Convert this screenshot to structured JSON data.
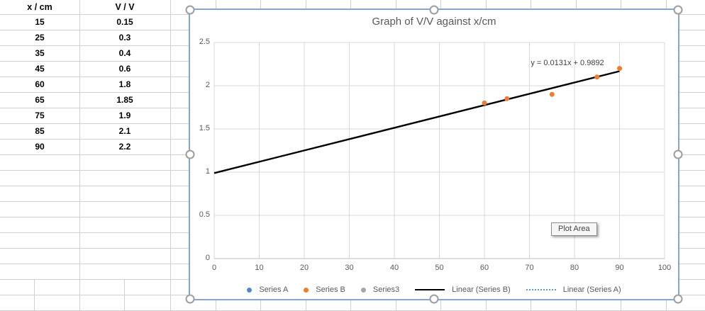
{
  "sheet": {
    "table": {
      "headers": [
        "x / cm",
        "V / V"
      ],
      "rows": [
        [
          "15",
          "0.15"
        ],
        [
          "25",
          "0.3"
        ],
        [
          "35",
          "0.4"
        ],
        [
          "45",
          "0.6"
        ],
        [
          "60",
          "1.8"
        ],
        [
          "65",
          "1.85"
        ],
        [
          "75",
          "1.9"
        ],
        [
          "85",
          "2.1"
        ],
        [
          "90",
          "2.2"
        ]
      ]
    }
  },
  "chart_data": {
    "type": "scatter",
    "title": "Graph of V/V against x/cm",
    "xlabel": "",
    "ylabel": "",
    "xlim": [
      0,
      100
    ],
    "ylim": [
      0,
      2.5
    ],
    "xticks": [
      0,
      10,
      20,
      30,
      40,
      50,
      60,
      70,
      80,
      90,
      100
    ],
    "yticks": [
      0,
      0.5,
      1,
      1.5,
      2,
      2.5
    ],
    "grid": true,
    "legend_position": "bottom",
    "series": [
      {
        "name": "Series A",
        "color": "#4e8bc8",
        "marker": "dot",
        "points": []
      },
      {
        "name": "Series B",
        "color": "#ed7d31",
        "marker": "dot",
        "points": [
          [
            60,
            1.8
          ],
          [
            65,
            1.85
          ],
          [
            75,
            1.9
          ],
          [
            85,
            2.1
          ],
          [
            90,
            2.2
          ]
        ]
      },
      {
        "name": "Series3",
        "color": "#a5a5a5",
        "marker": "dot",
        "points": []
      }
    ],
    "trendline": {
      "name": "Linear (Series B)",
      "equation": "y = 0.0131x + 0.9892",
      "slope": 0.0131,
      "intercept": 0.9892,
      "x_start": 0,
      "x_end": 90,
      "color": "#000000"
    },
    "legend": [
      {
        "label": "Series A",
        "marker": "dot",
        "color": "#4e8bc8"
      },
      {
        "label": "Series B",
        "marker": "dot",
        "color": "#ed7d31"
      },
      {
        "label": "Series3",
        "marker": "dot",
        "color": "#a5a5a5"
      },
      {
        "label": "Linear (Series B)",
        "marker": "line",
        "color": "#000000"
      },
      {
        "label": "Linear (Series A)",
        "marker": "dotted-line",
        "color": "#5b9bd5"
      }
    ],
    "tooltip": "Plot Area"
  },
  "colors": {
    "chart_selection_border": "#84a7cb",
    "chart_gridline": "#d9d9d9",
    "chart_axis_line": "#bfbfbf",
    "axis_text": "#595959",
    "sheet_gridline": "#d0d0d0",
    "trendline": "#000000",
    "point_orange": "#ed7d31"
  }
}
